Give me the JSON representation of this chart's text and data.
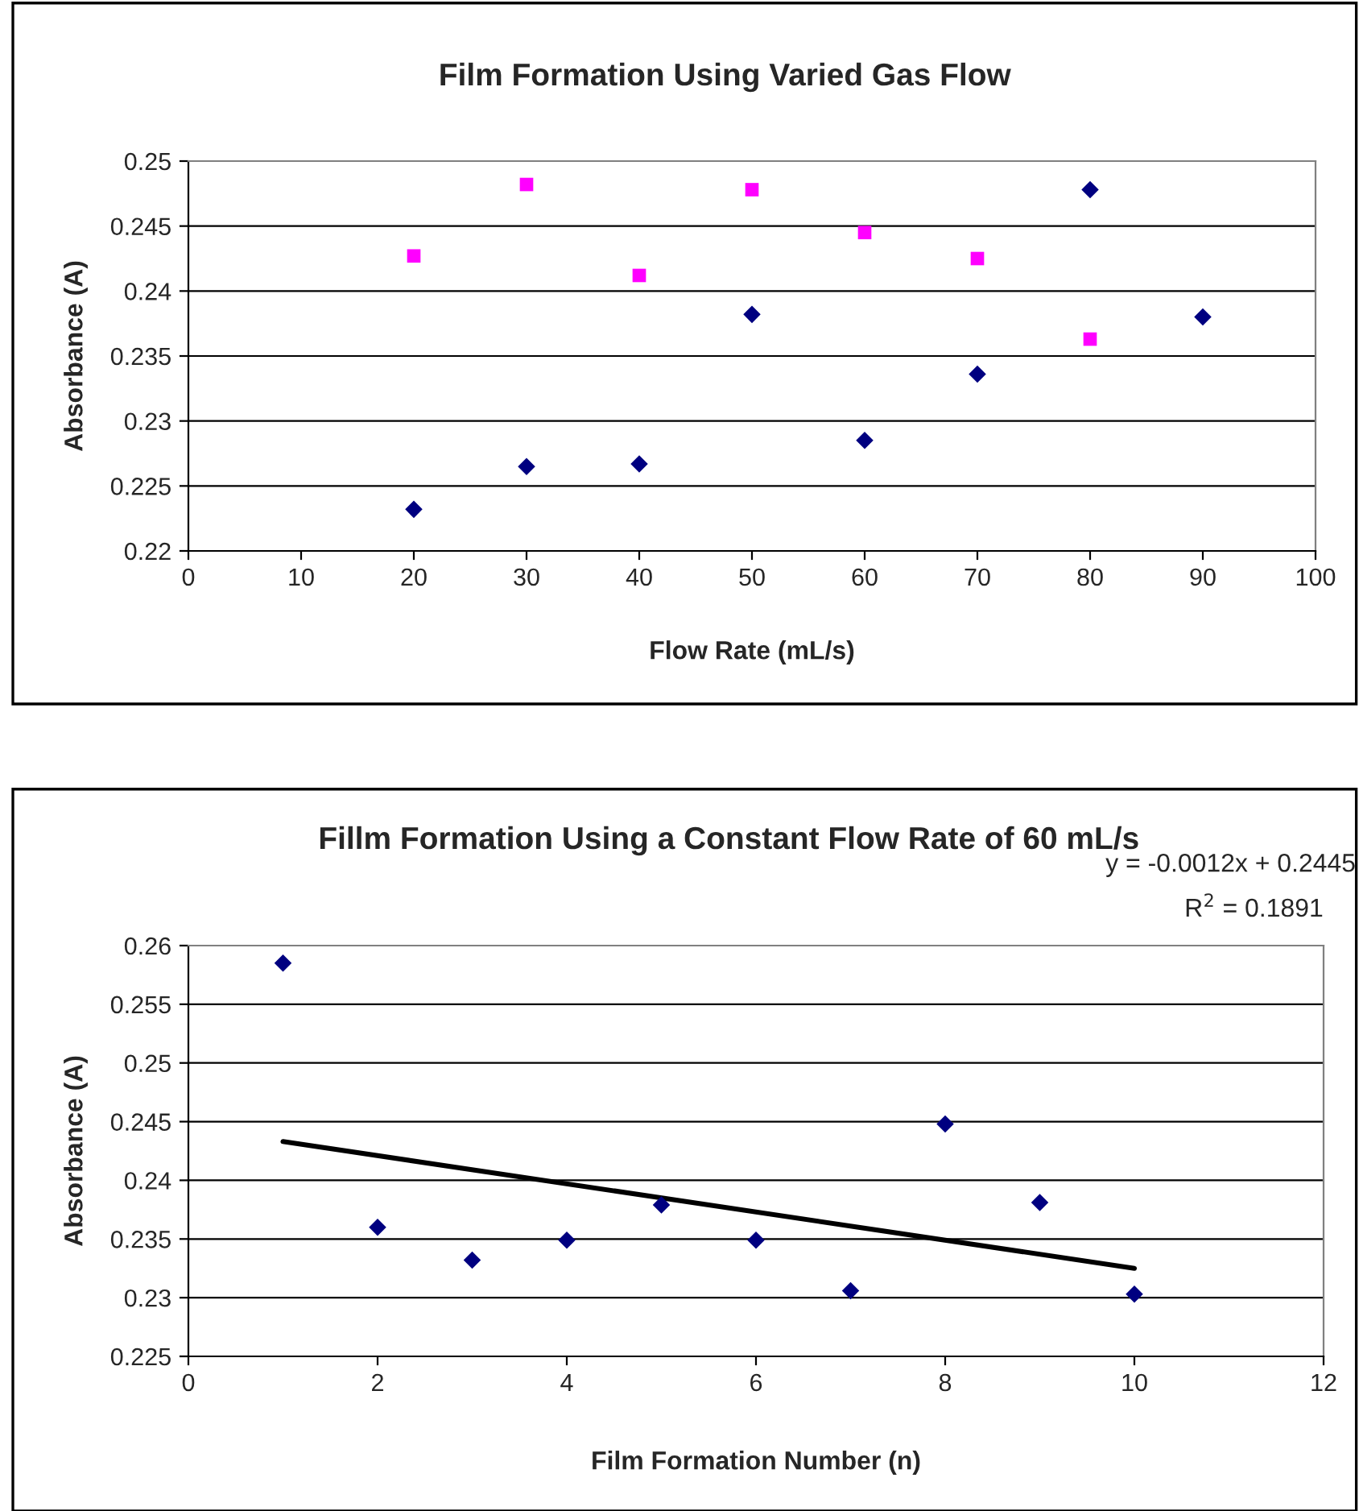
{
  "chart_data": [
    {
      "type": "scatter",
      "title": "Film Formation Using Varied Gas Flow",
      "xlabel": "Flow Rate (mL/s)",
      "ylabel": "Absorbance (A)",
      "xlim": [
        0,
        100
      ],
      "xticks": [
        0,
        10,
        20,
        30,
        40,
        50,
        60,
        70,
        80,
        90,
        100
      ],
      "ylim": [
        0.22,
        0.25
      ],
      "yticks": [
        0.22,
        0.225,
        0.23,
        0.235,
        0.24,
        0.245,
        0.25
      ],
      "grid": "y",
      "series": [
        {
          "color": "#ff00ff",
          "marker": "square",
          "x": [
            20,
            30,
            40,
            50,
            60,
            70,
            80
          ],
          "values": [
            0.2427,
            0.2482,
            0.2412,
            0.2478,
            0.2445,
            0.2425,
            0.2363
          ]
        },
        {
          "color": "#000080",
          "marker": "diamond",
          "x": [
            20,
            30,
            40,
            50,
            60,
            70,
            80,
            90
          ],
          "values": [
            0.2232,
            0.2265,
            0.2267,
            0.2382,
            0.2285,
            0.2336,
            0.2478,
            0.238
          ]
        }
      ]
    },
    {
      "type": "scatter",
      "title": "Fillm Formation Using a Constant Flow Rate of 60 mL/s",
      "xlabel": "Film Formation Number (n)",
      "ylabel": "Absorbance (A)",
      "xlim": [
        0,
        12
      ],
      "xticks": [
        0,
        2,
        4,
        6,
        8,
        10,
        12
      ],
      "ylim": [
        0.225,
        0.26
      ],
      "yticks": [
        0.225,
        0.23,
        0.235,
        0.24,
        0.245,
        0.25,
        0.255,
        0.26
      ],
      "grid": "y",
      "annotations": [
        "y = -0.0012x + 0.2445",
        "R$^{2}$ = 0.1891"
      ],
      "series": [
        {
          "color": "#000080",
          "marker": "diamond",
          "x": [
            1,
            2,
            3,
            4,
            5,
            6,
            7,
            8,
            9,
            10
          ],
          "values": [
            0.2585,
            0.236,
            0.2332,
            0.2349,
            0.2379,
            0.2349,
            0.2306,
            0.2448,
            0.2381,
            0.2303
          ]
        },
        {
          "type": "line",
          "color": "#000000",
          "marker": "none",
          "line_style": "solid",
          "x": [
            1,
            10
          ],
          "values": [
            0.2433,
            0.2325
          ]
        }
      ]
    }
  ]
}
